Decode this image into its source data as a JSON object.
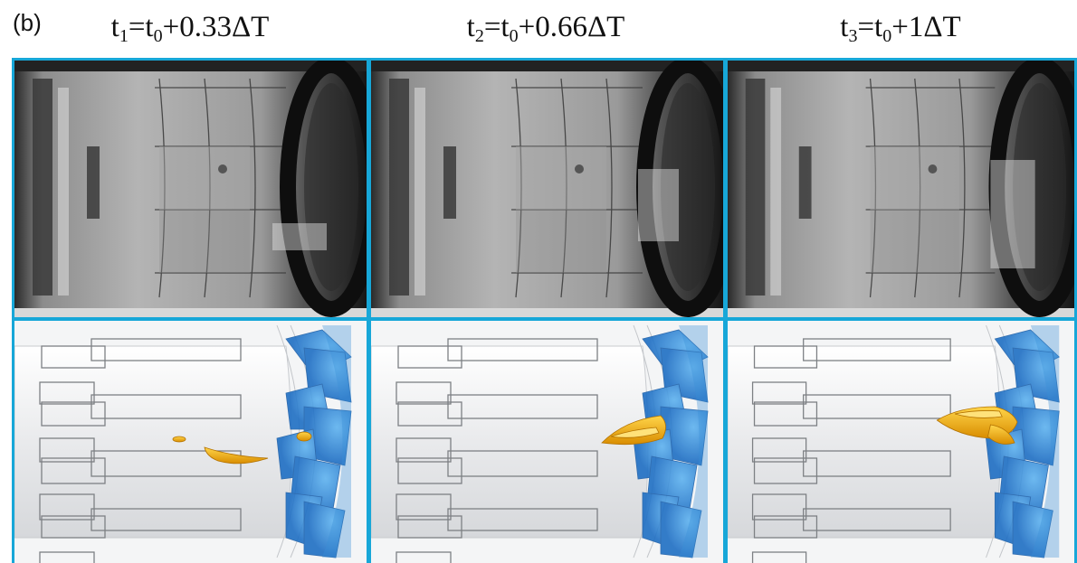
{
  "figure": {
    "panel_label": "(b)",
    "columns": [
      {
        "t": "t",
        "sub": "1",
        "eq": "=t",
        "sub0": "0",
        "rest": "+0.33ΔT"
      },
      {
        "t": "t",
        "sub": "2",
        "eq": "=t",
        "sub0": "0",
        "rest": "+0.66ΔT"
      },
      {
        "t": "t",
        "sub": "3",
        "eq": "=t",
        "sub0": "0",
        "rest": "+1ΔT"
      }
    ],
    "border_color": "#17a7d8",
    "cavity_color": "#f2b21b",
    "blade_color": "#3a8fd6"
  }
}
